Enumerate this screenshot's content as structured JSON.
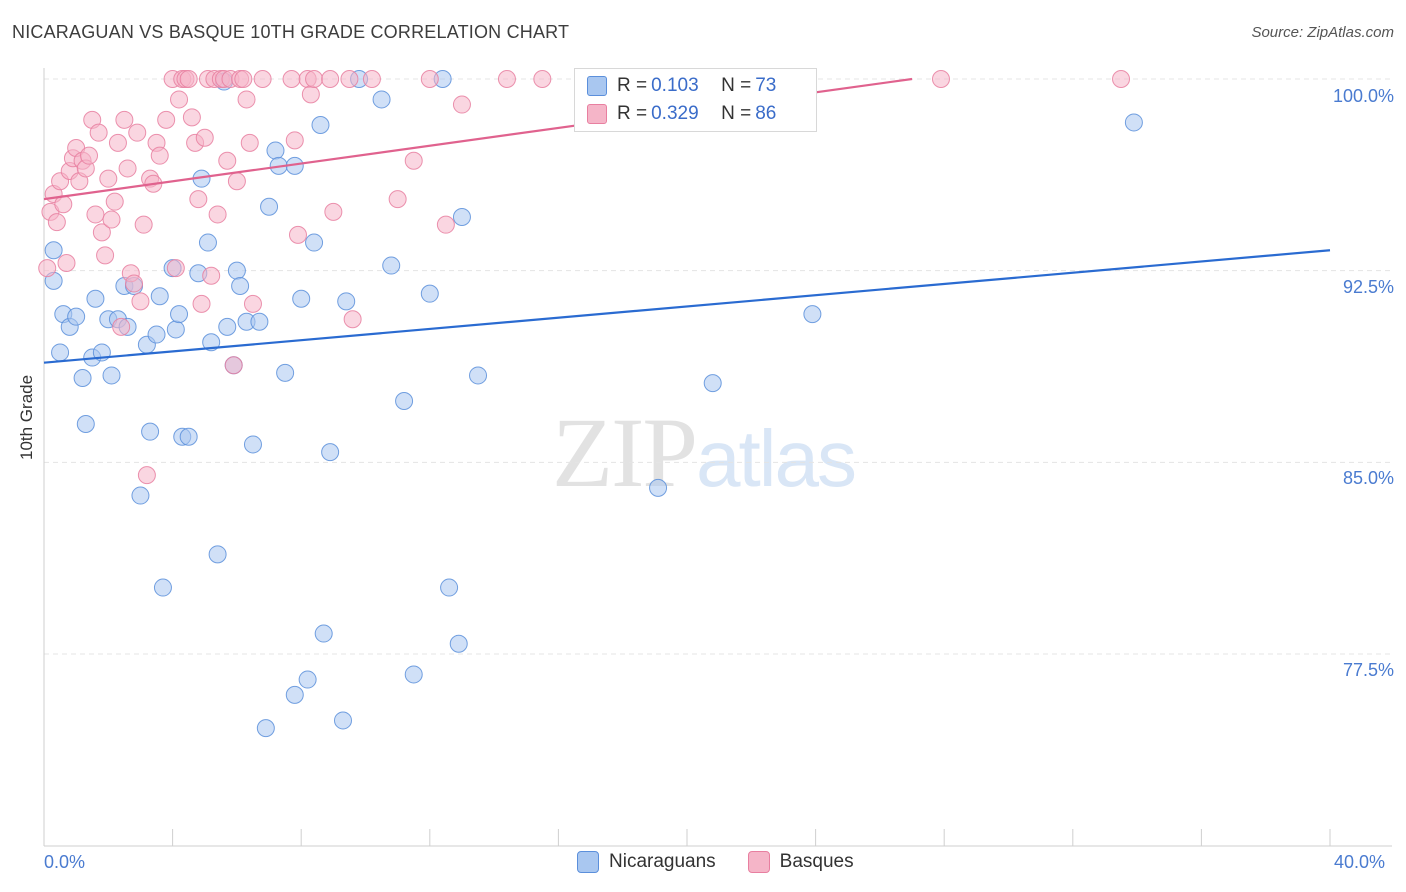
{
  "header": {
    "title": "NICARAGUAN VS BASQUE 10TH GRADE CORRELATION CHART",
    "source": "Source: ZipAtlas.com"
  },
  "watermark": {
    "zip": "ZIP",
    "atlas": "atlas"
  },
  "legend": {
    "rows": [
      {
        "r_label": "R = ",
        "r_value": "0.103",
        "n_label": "N = ",
        "n_value": "73",
        "color": "#a9c7f0"
      },
      {
        "r_label": "R = ",
        "r_value": "0.329",
        "n_label": "N = ",
        "n_value": "86",
        "color": "#f5b5c8"
      }
    ]
  },
  "bottom_legend": [
    {
      "label": "Nicaraguans",
      "color": "#a9c7f0"
    },
    {
      "label": "Basques",
      "color": "#f5b5c8"
    }
  ],
  "chart_data": {
    "type": "scatter",
    "title": "NICARAGUAN VS BASQUE 10TH GRADE CORRELATION CHART",
    "xlabel": "",
    "ylabel": "10th Grade",
    "xlim": [
      0,
      40
    ],
    "ylim": [
      70.0,
      100.3
    ],
    "x_tick_labels": [
      "0.0%",
      "40.0%"
    ],
    "y_ticks": [
      77.5,
      85.0,
      92.5,
      100.0
    ],
    "y_tick_labels": [
      "77.5%",
      "85.0%",
      "92.5%",
      "100.0%"
    ],
    "grid": "horizontal dashed",
    "legend_placement": "top-center",
    "series": [
      {
        "name": "Nicaraguans",
        "color": "#5b8fdb",
        "fill": "#a9c7f0",
        "trend": {
          "x": [
            0,
            40
          ],
          "y": [
            88.9,
            93.3
          ],
          "color": "#2a6bd1"
        },
        "points": [
          [
            0.3,
            93.3
          ],
          [
            0.3,
            92.1
          ],
          [
            0.5,
            89.3
          ],
          [
            0.6,
            90.8
          ],
          [
            0.8,
            90.3
          ],
          [
            1.0,
            90.7
          ],
          [
            1.2,
            88.3
          ],
          [
            1.3,
            86.5
          ],
          [
            1.5,
            89.1
          ],
          [
            1.6,
            91.4
          ],
          [
            1.8,
            89.3
          ],
          [
            2.0,
            90.6
          ],
          [
            2.1,
            88.4
          ],
          [
            2.3,
            90.6
          ],
          [
            2.5,
            91.9
          ],
          [
            2.6,
            90.3
          ],
          [
            2.8,
            91.9
          ],
          [
            3.0,
            83.7
          ],
          [
            3.2,
            89.6
          ],
          [
            3.3,
            86.2
          ],
          [
            3.5,
            90.0
          ],
          [
            3.6,
            91.5
          ],
          [
            3.7,
            80.1
          ],
          [
            4.0,
            92.6
          ],
          [
            4.1,
            90.2
          ],
          [
            4.2,
            90.8
          ],
          [
            4.3,
            86.0
          ],
          [
            4.5,
            86.0
          ],
          [
            4.8,
            92.4
          ],
          [
            4.9,
            96.1
          ],
          [
            5.1,
            93.6
          ],
          [
            5.2,
            89.7
          ],
          [
            5.4,
            81.4
          ],
          [
            5.6,
            99.9
          ],
          [
            5.7,
            90.3
          ],
          [
            5.9,
            88.8
          ],
          [
            6.0,
            92.5
          ],
          [
            6.1,
            91.9
          ],
          [
            6.3,
            90.5
          ],
          [
            6.5,
            85.7
          ],
          [
            6.7,
            90.5
          ],
          [
            6.9,
            74.6
          ],
          [
            7.0,
            95.0
          ],
          [
            7.2,
            97.2
          ],
          [
            7.3,
            96.6
          ],
          [
            7.5,
            88.5
          ],
          [
            7.8,
            96.6
          ],
          [
            7.8,
            75.9
          ],
          [
            8.0,
            91.4
          ],
          [
            8.2,
            76.5
          ],
          [
            8.4,
            93.6
          ],
          [
            8.6,
            98.2
          ],
          [
            8.7,
            78.3
          ],
          [
            8.9,
            85.4
          ],
          [
            9.3,
            74.9
          ],
          [
            9.4,
            91.3
          ],
          [
            9.8,
            100.0
          ],
          [
            10.5,
            99.2
          ],
          [
            10.8,
            92.7
          ],
          [
            11.2,
            87.4
          ],
          [
            11.5,
            76.7
          ],
          [
            12.0,
            91.6
          ],
          [
            12.4,
            100.0
          ],
          [
            12.6,
            80.1
          ],
          [
            12.9,
            77.9
          ],
          [
            13.0,
            94.6
          ],
          [
            13.5,
            88.4
          ],
          [
            16.8,
            100.0
          ],
          [
            19.1,
            84.0
          ],
          [
            20.8,
            88.1
          ],
          [
            21.2,
            100.0
          ],
          [
            23.9,
            90.8
          ],
          [
            33.9,
            98.3
          ]
        ]
      },
      {
        "name": "Basques",
        "color": "#e87fa0",
        "fill": "#f5b5c8",
        "trend": {
          "x": [
            0,
            27.0
          ],
          "y": [
            95.3,
            100.0
          ],
          "color": "#e0628e"
        },
        "points": [
          [
            0.1,
            92.6
          ],
          [
            0.2,
            94.8
          ],
          [
            0.3,
            95.5
          ],
          [
            0.4,
            94.4
          ],
          [
            0.5,
            96.0
          ],
          [
            0.6,
            95.1
          ],
          [
            0.7,
            92.8
          ],
          [
            0.8,
            96.4
          ],
          [
            0.9,
            96.9
          ],
          [
            1.0,
            97.3
          ],
          [
            1.1,
            96.0
          ],
          [
            1.2,
            96.8
          ],
          [
            1.3,
            96.5
          ],
          [
            1.4,
            97.0
          ],
          [
            1.5,
            98.4
          ],
          [
            1.6,
            94.7
          ],
          [
            1.7,
            97.9
          ],
          [
            1.8,
            94.0
          ],
          [
            1.9,
            93.1
          ],
          [
            2.0,
            96.1
          ],
          [
            2.1,
            94.5
          ],
          [
            2.2,
            95.2
          ],
          [
            2.3,
            97.5
          ],
          [
            2.4,
            90.3
          ],
          [
            2.5,
            98.4
          ],
          [
            2.6,
            96.5
          ],
          [
            2.7,
            92.4
          ],
          [
            2.8,
            92.0
          ],
          [
            2.9,
            97.9
          ],
          [
            3.0,
            91.3
          ],
          [
            3.1,
            94.3
          ],
          [
            3.2,
            84.5
          ],
          [
            3.3,
            96.1
          ],
          [
            3.4,
            95.9
          ],
          [
            3.5,
            97.5
          ],
          [
            3.6,
            97.0
          ],
          [
            3.8,
            98.4
          ],
          [
            4.0,
            100.0
          ],
          [
            4.1,
            92.6
          ],
          [
            4.2,
            99.2
          ],
          [
            4.3,
            100.0
          ],
          [
            4.4,
            100.0
          ],
          [
            4.5,
            100.0
          ],
          [
            4.6,
            98.5
          ],
          [
            4.7,
            97.5
          ],
          [
            4.8,
            95.3
          ],
          [
            4.9,
            91.2
          ],
          [
            5.0,
            97.7
          ],
          [
            5.1,
            100.0
          ],
          [
            5.2,
            92.3
          ],
          [
            5.3,
            100.0
          ],
          [
            5.4,
            94.7
          ],
          [
            5.5,
            100.0
          ],
          [
            5.6,
            100.0
          ],
          [
            5.7,
            96.8
          ],
          [
            5.8,
            100.0
          ],
          [
            5.9,
            88.8
          ],
          [
            6.0,
            96.0
          ],
          [
            6.1,
            100.0
          ],
          [
            6.2,
            100.0
          ],
          [
            6.3,
            99.2
          ],
          [
            6.4,
            97.5
          ],
          [
            6.5,
            91.2
          ],
          [
            6.8,
            100.0
          ],
          [
            7.7,
            100.0
          ],
          [
            7.8,
            97.6
          ],
          [
            7.9,
            93.9
          ],
          [
            8.2,
            100.0
          ],
          [
            8.3,
            99.4
          ],
          [
            8.4,
            100.0
          ],
          [
            8.9,
            100.0
          ],
          [
            9.0,
            94.8
          ],
          [
            9.5,
            100.0
          ],
          [
            9.6,
            90.6
          ],
          [
            10.2,
            100.0
          ],
          [
            11.0,
            95.3
          ],
          [
            11.5,
            96.8
          ],
          [
            12.0,
            100.0
          ],
          [
            12.5,
            94.3
          ],
          [
            13.0,
            99.0
          ],
          [
            14.4,
            100.0
          ],
          [
            15.5,
            100.0
          ],
          [
            17.0,
            100.0
          ],
          [
            18.5,
            100.0
          ],
          [
            27.9,
            100.0
          ],
          [
            33.5,
            100.0
          ]
        ]
      }
    ]
  }
}
